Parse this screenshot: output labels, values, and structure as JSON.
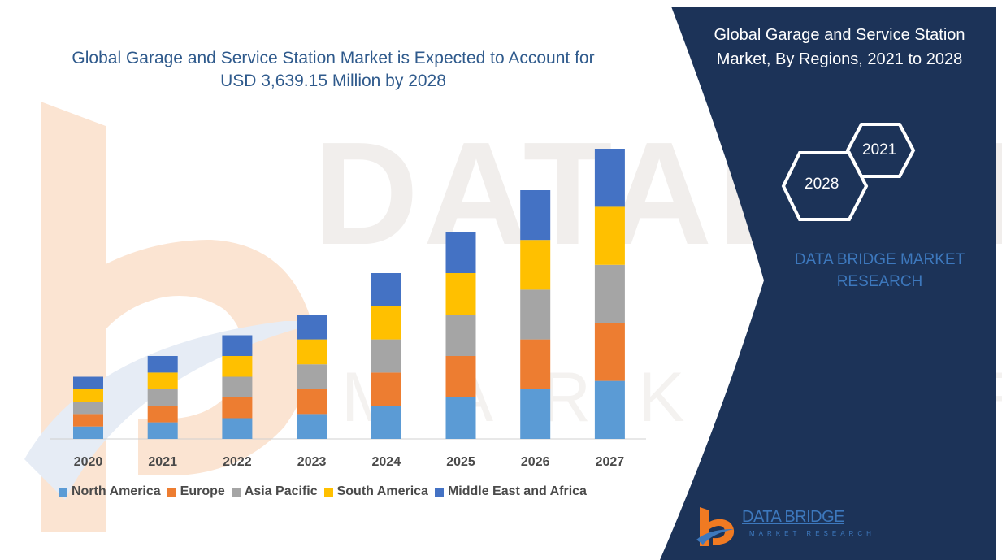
{
  "watermark": {
    "top": "DATABRIDGE",
    "bottom": "MARKET RESEARCH"
  },
  "title": "Global Garage and Service Station Market is Expected to Account for USD 3,639.15 Million by 2028",
  "side_panel": {
    "title": "Global Garage and Service Station Market, By Regions, 2021 to 2028",
    "hex_labels": [
      "2021",
      "2028"
    ],
    "brand_text": "DATA BRIDGE MARKET RESEARCH",
    "logo_name": "DATA BRIDGE",
    "logo_sub": "MARKET RESEARCH"
  },
  "colors": {
    "panel_bg": "#1c3358",
    "brand_blue": "#3d78bd",
    "logo_orange": "#f07a22"
  },
  "chart_data": {
    "type": "bar",
    "stacked": true,
    "title": "Global Garage and Service Station Market is Expected to Account for USD 3,639.15 Million by 2028",
    "xlabel": "",
    "ylabel": "",
    "ylim": [
      0,
      7
    ],
    "grid": false,
    "legend_position": "bottom",
    "categories": [
      "2020",
      "2021",
      "2022",
      "2023",
      "2024",
      "2025",
      "2026",
      "2027"
    ],
    "series": [
      {
        "name": "North America",
        "color": "#5b9bd5",
        "values": [
          0.3,
          0.4,
          0.5,
          0.6,
          0.8,
          1.0,
          1.2,
          1.4
        ]
      },
      {
        "name": "Europe",
        "color": "#ed7d31",
        "values": [
          0.3,
          0.4,
          0.5,
          0.6,
          0.8,
          1.0,
          1.2,
          1.4
        ]
      },
      {
        "name": "Asia Pacific",
        "color": "#a5a5a5",
        "values": [
          0.3,
          0.4,
          0.5,
          0.6,
          0.8,
          1.0,
          1.2,
          1.4
        ]
      },
      {
        "name": "South America",
        "color": "#ffc000",
        "values": [
          0.3,
          0.4,
          0.5,
          0.6,
          0.8,
          1.0,
          1.2,
          1.4
        ]
      },
      {
        "name": "Middle East and Africa",
        "color": "#4472c4",
        "values": [
          0.3,
          0.4,
          0.5,
          0.6,
          0.8,
          1.0,
          1.2,
          1.4
        ]
      }
    ]
  }
}
